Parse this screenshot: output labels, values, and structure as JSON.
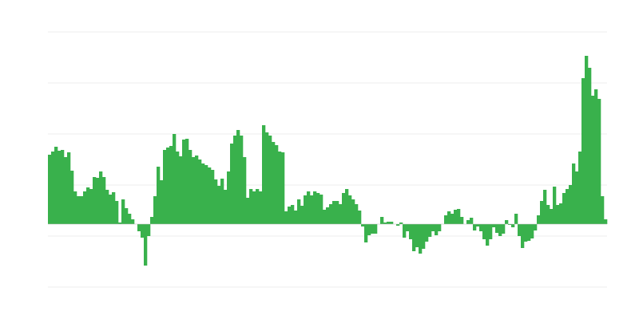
{
  "chart_data": {
    "type": "bar",
    "title": "",
    "xlabel": "",
    "ylabel": "",
    "ylim": [
      -79,
      241
    ],
    "gridlines": [
      241,
      177,
      113,
      49,
      -15,
      -79
    ],
    "grid": true,
    "legend": "none",
    "colors": {
      "bar": "#39b14c",
      "grid": "#eeeeee",
      "baseline": "#bbbbbb"
    },
    "values": [
      87,
      91,
      97,
      92,
      93,
      84,
      90,
      67,
      41,
      35,
      35,
      41,
      46,
      44,
      59,
      58,
      66,
      59,
      43,
      37,
      40,
      29,
      2,
      31,
      20,
      13,
      6,
      0,
      -9,
      -17,
      -52,
      -15,
      9,
      35,
      72,
      55,
      93,
      96,
      98,
      113,
      91,
      85,
      106,
      107,
      93,
      84,
      86,
      81,
      76,
      74,
      71,
      68,
      56,
      48,
      57,
      43,
      66,
      101,
      111,
      118,
      111,
      84,
      33,
      44,
      41,
      44,
      41,
      124,
      115,
      111,
      103,
      99,
      91,
      90,
      16,
      22,
      24,
      17,
      31,
      23,
      36,
      41,
      36,
      41,
      39,
      37,
      18,
      21,
      25,
      29,
      29,
      25,
      39,
      44,
      36,
      31,
      25,
      17,
      -3,
      -23,
      -14,
      -12,
      -12,
      0,
      9,
      2,
      3,
      3,
      0,
      -2,
      2,
      -17,
      -9,
      -19,
      -34,
      -29,
      -37,
      -31,
      -22,
      -16,
      -9,
      -14,
      -9,
      0,
      11,
      16,
      13,
      18,
      19,
      9,
      0,
      5,
      8,
      -8,
      -3,
      -9,
      -19,
      -27,
      -19,
      -4,
      -11,
      -15,
      -12,
      5,
      -1,
      -4,
      13,
      -15,
      -30,
      -22,
      -21,
      -18,
      -8,
      11,
      29,
      43,
      24,
      19,
      47,
      24,
      26,
      39,
      44,
      49,
      76,
      66,
      91,
      183,
      211,
      196,
      161,
      169,
      157,
      35,
      6
    ]
  }
}
